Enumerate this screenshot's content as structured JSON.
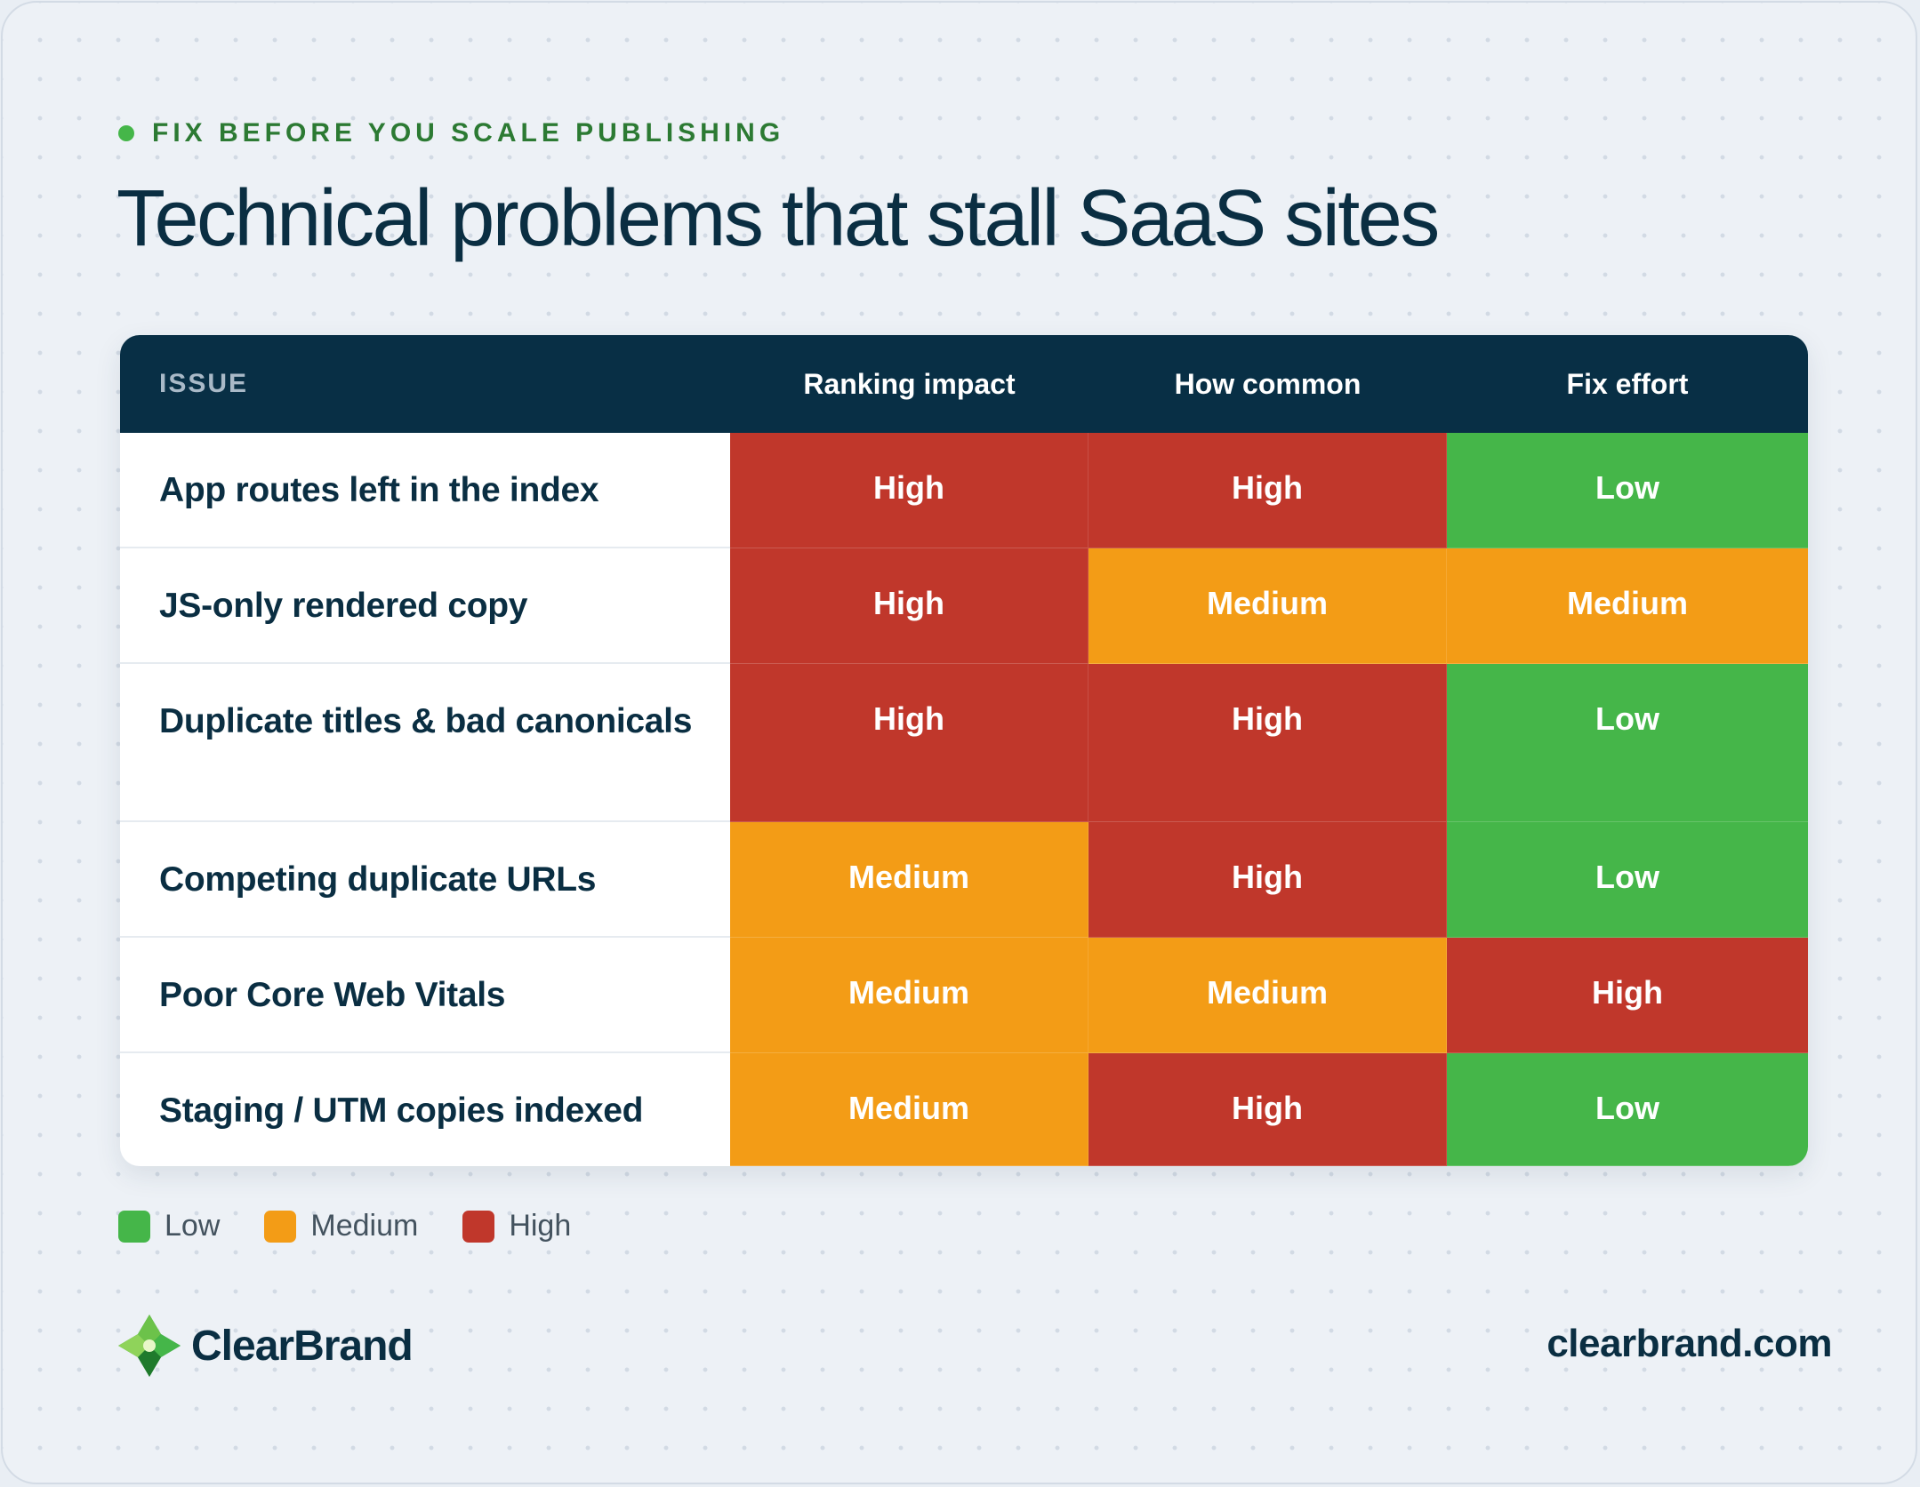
{
  "header": {
    "eyebrow": "FIX BEFORE YOU SCALE PUBLISHING",
    "title": "Technical problems that stall SaaS sites"
  },
  "colors": {
    "Low": "#45b649",
    "Medium": "#f39c16",
    "High": "#c0372b",
    "header_bg": "#082f45",
    "eyebrow": "#2c7a33"
  },
  "chart_data": {
    "type": "table",
    "columns": [
      "ISSUE",
      "Ranking impact",
      "How common",
      "Fix effort"
    ],
    "rows": [
      {
        "issue": "App routes left in the index",
        "values": [
          "High",
          "High",
          "Low"
        ]
      },
      {
        "issue": "JS-only rendered copy",
        "values": [
          "High",
          "Medium",
          "Medium"
        ]
      },
      {
        "issue": "Duplicate titles & bad canonicals",
        "values": [
          "High",
          "High",
          "Low"
        ]
      },
      {
        "issue": "Competing duplicate URLs",
        "values": [
          "Medium",
          "High",
          "Low"
        ]
      },
      {
        "issue": "Poor Core Web Vitals",
        "values": [
          "Medium",
          "Medium",
          "High"
        ]
      },
      {
        "issue": "Staging / UTM copies indexed",
        "values": [
          "Medium",
          "High",
          "Low"
        ]
      }
    ],
    "legend": [
      "Low",
      "Medium",
      "High"
    ]
  },
  "footer": {
    "brand": "ClearBrand",
    "domain": "clearbrand.com",
    "logo_icon": "clearbrand-logo-icon"
  }
}
